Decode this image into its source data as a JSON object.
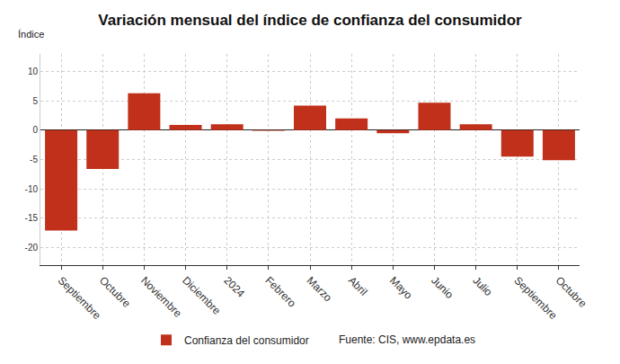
{
  "chart_data": {
    "type": "bar",
    "title": "Variación mensual del índice de confianza del consumidor",
    "ylabel": "Índice",
    "categories": [
      "Septiembre",
      "Octubre",
      "Noviembre",
      "Diciembre",
      "2024",
      "Febrero",
      "Marzo",
      "Abril",
      "Mayo",
      "Junio",
      "Julio",
      "Septiembre",
      "Octubre"
    ],
    "series": [
      {
        "name": "Confianza del consumidor",
        "color": "#c0301a",
        "values": [
          -17.1,
          -6.6,
          6.3,
          0.9,
          1.0,
          -0.1,
          4.2,
          2.0,
          -0.5,
          4.7,
          1.0,
          -4.5,
          -5.1
        ]
      }
    ],
    "ylim": [
      -23,
      13
    ],
    "yticks": [
      -20,
      -15,
      -10,
      -5,
      0,
      5,
      10
    ],
    "grid": true,
    "legend": "bottom",
    "annotations": [
      "Fuente: CIS, www.epdata.es"
    ]
  }
}
